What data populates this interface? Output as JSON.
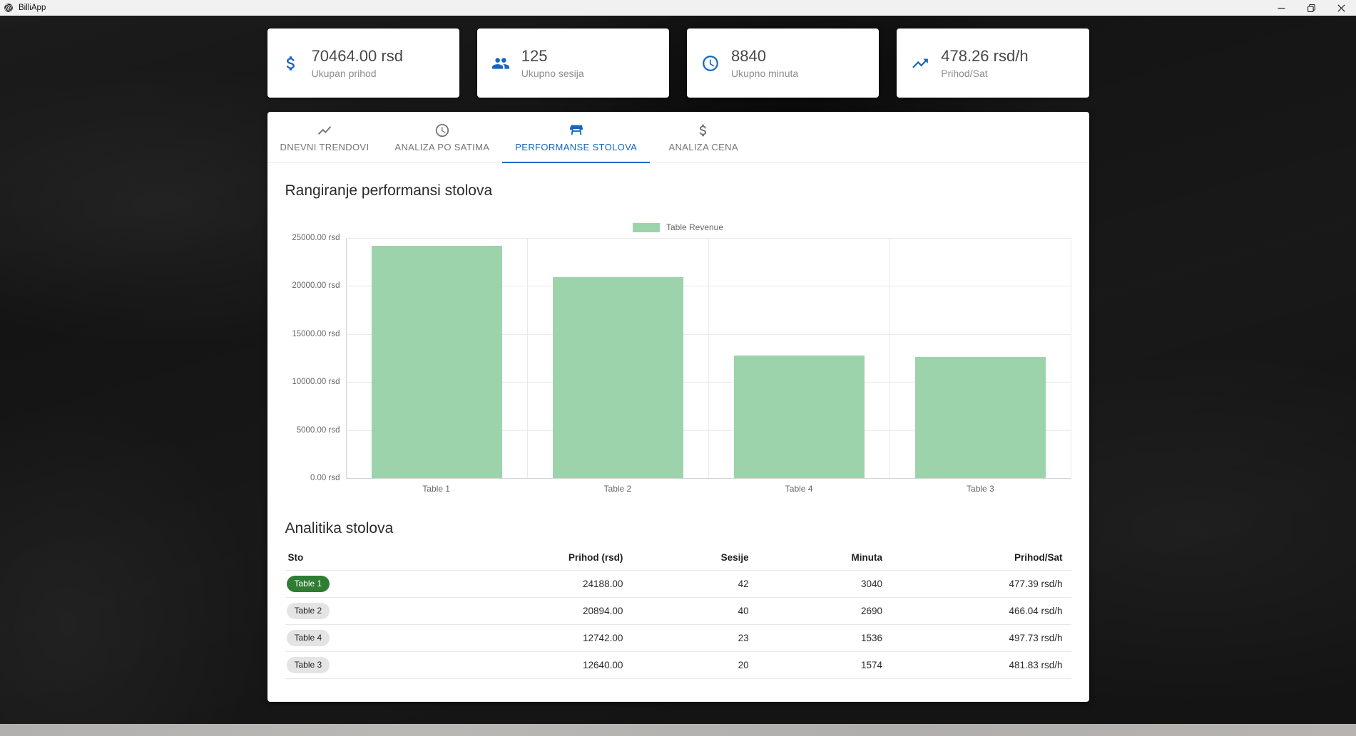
{
  "window": {
    "title": "BilliApp"
  },
  "stats": [
    {
      "icon": "dollar-icon",
      "value": "70464.00 rsd",
      "label": "Ukupan prihod"
    },
    {
      "icon": "people-icon",
      "value": "125",
      "label": "Ukupno sesija"
    },
    {
      "icon": "clock-icon",
      "value": "8840",
      "label": "Ukupno minuta"
    },
    {
      "icon": "trending-up-icon",
      "value": "478.26 rsd/h",
      "label": "Prihod/Sat"
    }
  ],
  "tabs": [
    {
      "label": "DNEVNI TRENDOVI",
      "icon": "line-chart-icon",
      "active": false
    },
    {
      "label": "ANALIZA PO SATIMA",
      "icon": "clock-icon",
      "active": false
    },
    {
      "label": "PERFORMANSE STOLOVA",
      "icon": "table-icon",
      "active": true
    },
    {
      "label": "ANALIZA CENA",
      "icon": "dollar-icon",
      "active": false
    }
  ],
  "chart_section": {
    "title": "Rangiranje performansi stolova"
  },
  "chart_data": {
    "type": "bar",
    "title": "Rangiranje performansi stolova",
    "series_name": "Table Revenue",
    "categories": [
      "Table 1",
      "Table 2",
      "Table 4",
      "Table 3"
    ],
    "values": [
      24188,
      20894,
      12742,
      12640
    ],
    "xlabel": "",
    "ylabel": "",
    "ylim": [
      0,
      25000
    ],
    "ytick_step": 5000,
    "ytick_suffix": " rsd",
    "grid": true,
    "legend_position": "top",
    "bar_color": "#9dd3aa"
  },
  "table_section": {
    "title": "Analitika stolova",
    "columns": [
      "Sto",
      "Prihod (rsd)",
      "Sesije",
      "Minuta",
      "Prihod/Sat"
    ],
    "rows": [
      {
        "label": "Table 1",
        "revenue": "24188.00",
        "sessions": "42",
        "minutes": "3040",
        "revenue_per_hour": "477.39 rsd/h",
        "highlighted": true
      },
      {
        "label": "Table 2",
        "revenue": "20894.00",
        "sessions": "40",
        "minutes": "2690",
        "revenue_per_hour": "466.04 rsd/h",
        "highlighted": false
      },
      {
        "label": "Table 4",
        "revenue": "12742.00",
        "sessions": "23",
        "minutes": "1536",
        "revenue_per_hour": "497.73 rsd/h",
        "highlighted": false
      },
      {
        "label": "Table 3",
        "revenue": "12640.00",
        "sessions": "20",
        "minutes": "1574",
        "revenue_per_hour": "481.83 rsd/h",
        "highlighted": false
      }
    ]
  },
  "colors": {
    "accent_blue": "#1565c0",
    "bar_green": "#9dd3aa",
    "badge_green": "#2e7d32",
    "badge_gray": "#e4e4e4"
  }
}
